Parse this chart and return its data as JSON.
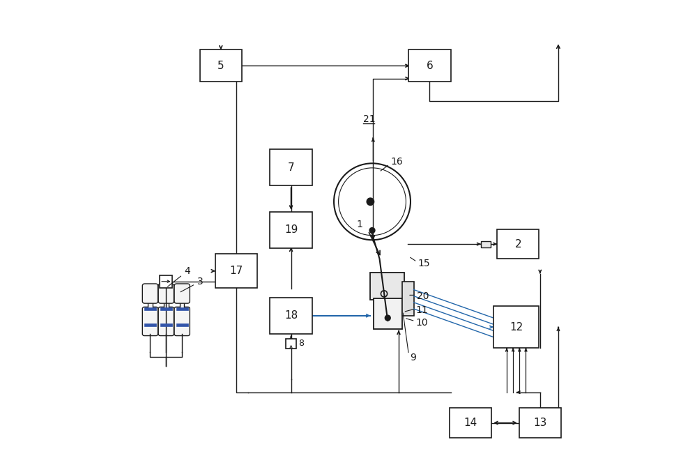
{
  "bg_color": "#ffffff",
  "line_color": "#1a1a1a",
  "box_color": "#ffffff",
  "box_edge": "#1a1a1a",
  "blue_accent": "#3355aa",
  "teal_color": "#2266aa",
  "figsize": [
    10.0,
    6.57
  ],
  "dpi": 100
}
